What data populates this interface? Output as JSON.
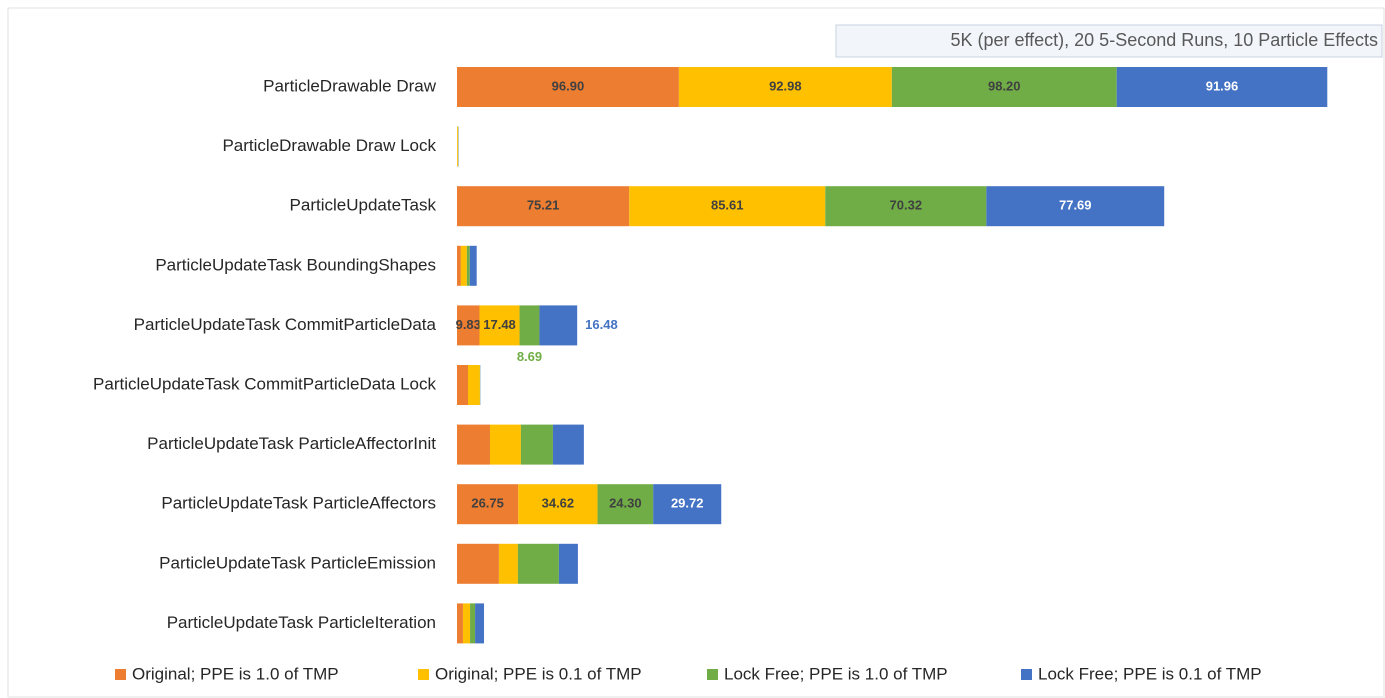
{
  "chart_data": {
    "type": "stacked_barh",
    "title": "5K (per effect), 20 5-Second Runs, 10 Particle Effects",
    "categories": [
      "ParticleDrawable Draw",
      "ParticleDrawable Draw Lock",
      "ParticleUpdateTask",
      "ParticleUpdateTask BoundingShapes",
      "ParticleUpdateTask CommitParticleData",
      "ParticleUpdateTask CommitParticleData Lock",
      "ParticleUpdateTask ParticleAffectorInit",
      "ParticleUpdateTask ParticleAffectors",
      "ParticleUpdateTask ParticleEmission",
      "ParticleUpdateTask ParticleIteration"
    ],
    "series": [
      {
        "name": "Original; PPE is 1.0 of TMP",
        "color": "#ed7d31",
        "values": [
          96.9,
          0.1,
          75.21,
          1.7,
          9.83,
          4.8,
          14.4,
          26.75,
          18.3,
          2.6
        ],
        "value_labels": [
          "96.90",
          null,
          "75.21",
          null,
          "9.83",
          null,
          null,
          "26.75",
          null,
          null
        ]
      },
      {
        "name": "Original; PPE is 0.1 of TMP",
        "color": "#ffc000",
        "values": [
          92.98,
          0.4,
          85.61,
          2.6,
          17.48,
          5.2,
          13.5,
          34.62,
          8.3,
          3.1
        ],
        "value_labels": [
          "92.98",
          null,
          "85.61",
          null,
          "17.48",
          null,
          null,
          "34.62",
          null,
          null
        ]
      },
      {
        "name": "Lock Free; PPE is 1.0 of TMP",
        "color": "#70ad47",
        "values": [
          98.2,
          0.1,
          70.32,
          1.3,
          8.69,
          0.1,
          14.0,
          24.3,
          17.9,
          2.2
        ],
        "value_labels": [
          "98.20",
          null,
          "70.32",
          null,
          "8.69",
          null,
          null,
          "24.30",
          null,
          null
        ]
      },
      {
        "name": "Lock Free; PPE is 0.1 of TMP",
        "color": "#4472c4",
        "values": [
          91.96,
          0.1,
          77.69,
          3.0,
          16.48,
          0.1,
          13.5,
          29.72,
          8.3,
          3.9
        ],
        "value_labels": [
          "91.96",
          null,
          "77.69",
          null,
          "16.48",
          null,
          null,
          "29.72",
          null,
          null
        ]
      }
    ],
    "legend": "bottom"
  }
}
